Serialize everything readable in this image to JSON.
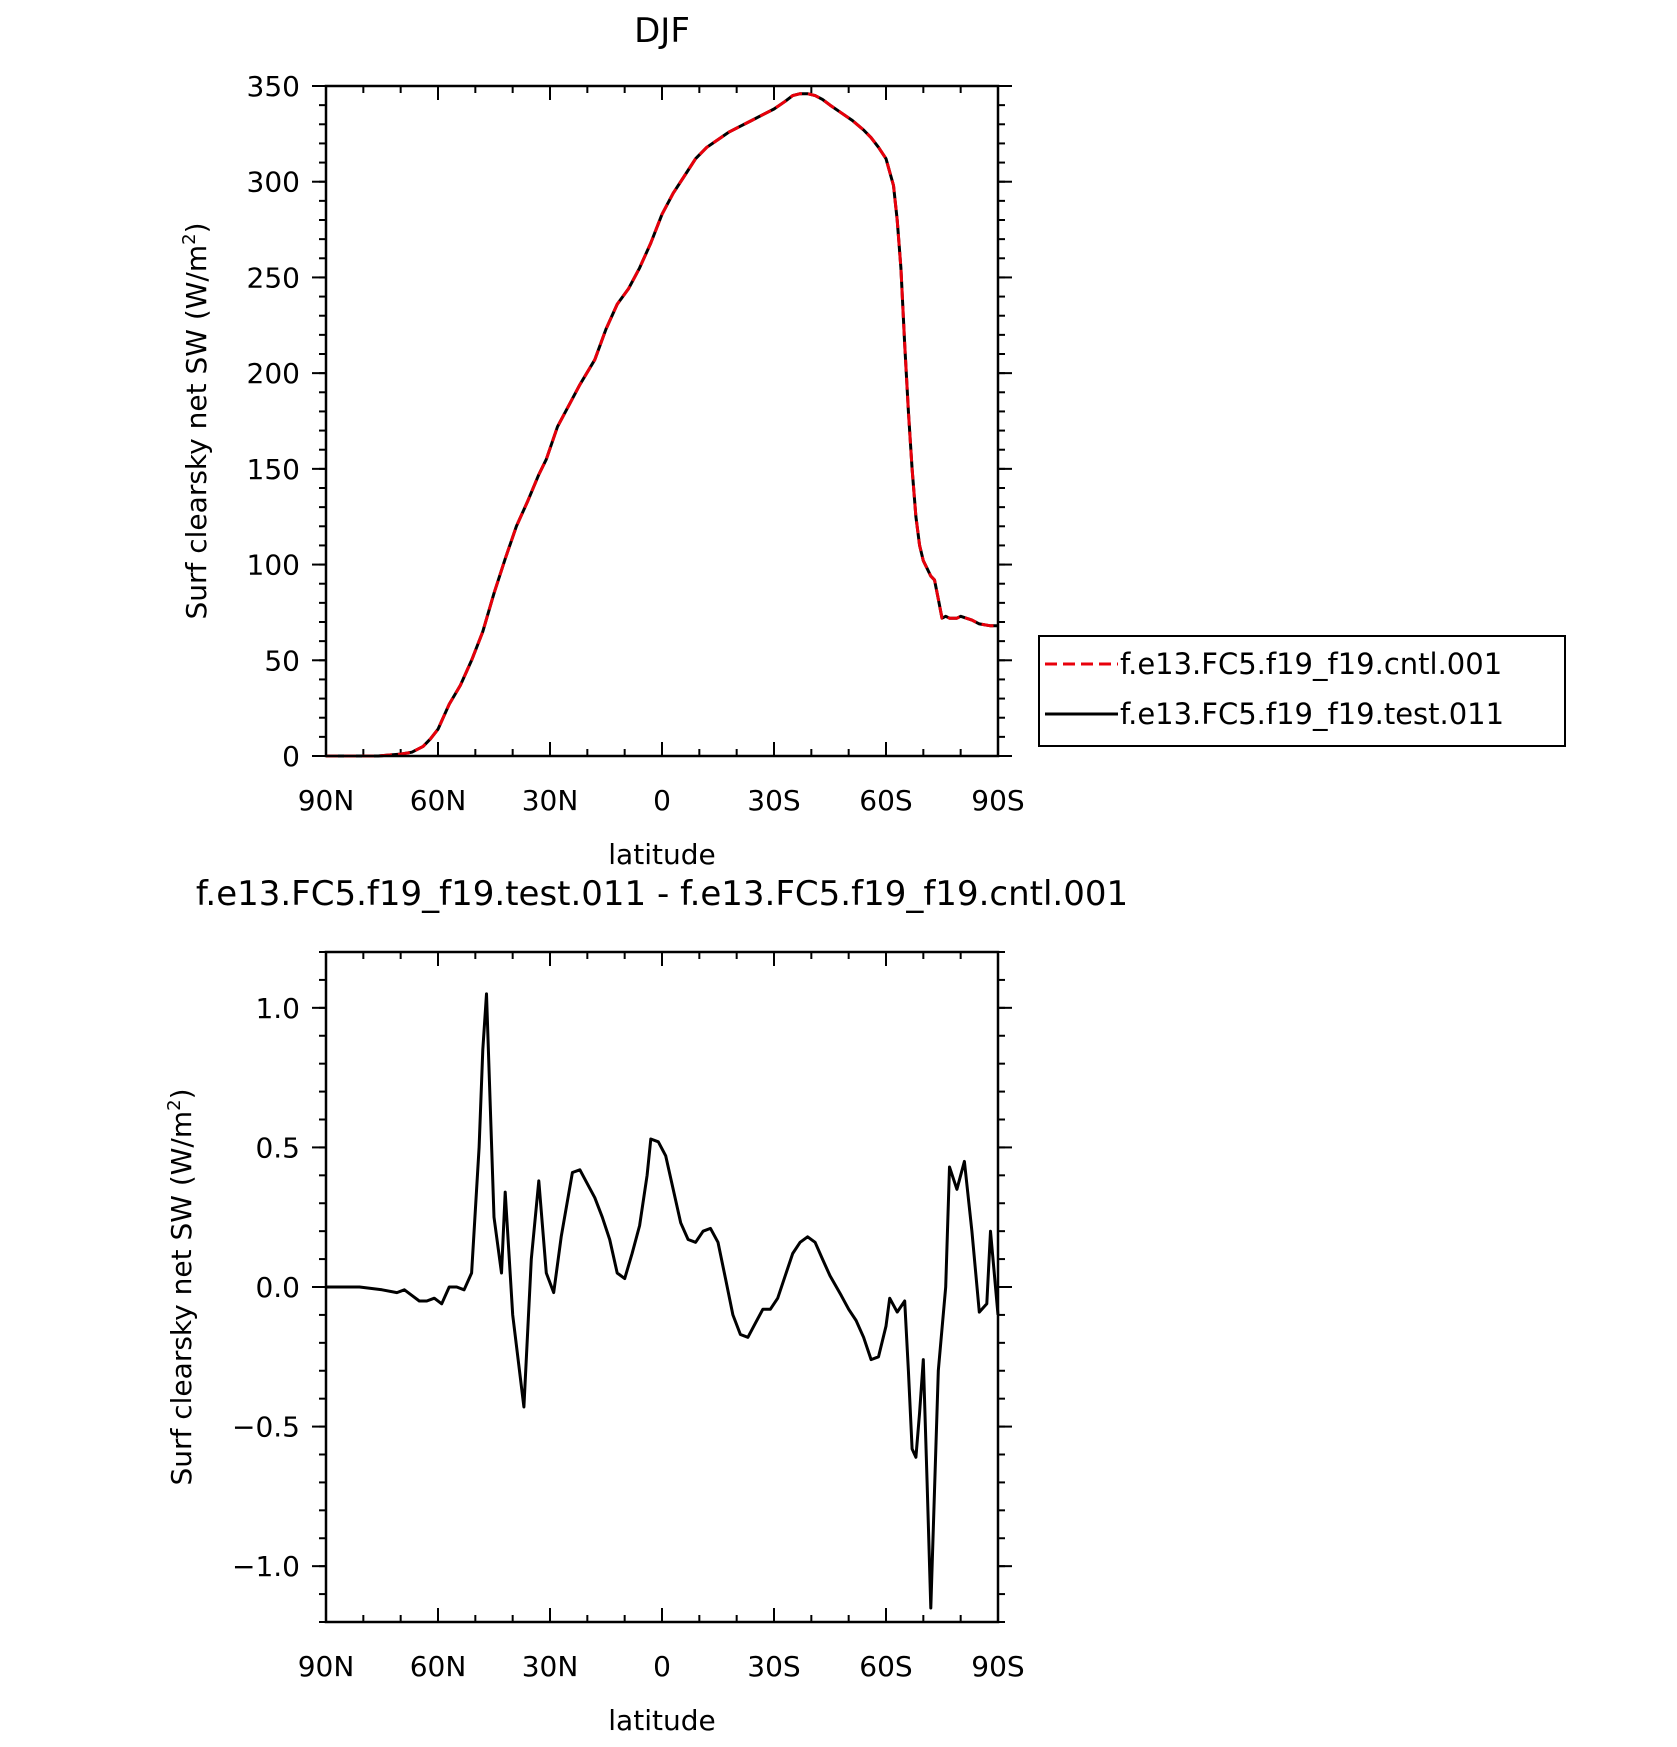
{
  "chart_data": [
    {
      "type": "line",
      "title": "DJF",
      "xlabel": "latitude",
      "ylabel": "Surf clearsky net SW (W/m²)",
      "ylabel_parts": [
        "Surf clearsky net SW (W/m",
        "2",
        ")"
      ],
      "xlim": [
        -90,
        90
      ],
      "ylim": [
        0,
        350
      ],
      "xticks": [
        {
          "value": -90,
          "label": "90N"
        },
        {
          "value": -60,
          "label": "60N"
        },
        {
          "value": -30,
          "label": "30N"
        },
        {
          "value": 0,
          "label": "0"
        },
        {
          "value": 30,
          "label": "30S"
        },
        {
          "value": 60,
          "label": "60S"
        },
        {
          "value": 90,
          "label": "90S"
        }
      ],
      "yticks": [
        {
          "value": 0,
          "label": "0"
        },
        {
          "value": 50,
          "label": "50"
        },
        {
          "value": 100,
          "label": "100"
        },
        {
          "value": 150,
          "label": "150"
        },
        {
          "value": 200,
          "label": "200"
        },
        {
          "value": 250,
          "label": "250"
        },
        {
          "value": 300,
          "label": "300"
        },
        {
          "value": 350,
          "label": "350"
        }
      ],
      "legend_position": "right",
      "series": [
        {
          "name": "f.e13.FC5.f19_f19.cntl.001",
          "color": "#e8000b",
          "style": "dashed",
          "x": [
            -90,
            -85,
            -80,
            -76,
            -73,
            -70,
            -67,
            -64,
            -62,
            -60,
            -57,
            -54,
            -51,
            -48,
            -45,
            -42,
            -39,
            -36,
            -33,
            -31,
            -28,
            -25,
            -22,
            -18,
            -15,
            -12,
            -9,
            -6,
            -3,
            0,
            3,
            6,
            9,
            12,
            15,
            18,
            21,
            24,
            27,
            30,
            33,
            35,
            37,
            39,
            41,
            43,
            45,
            48,
            51,
            54,
            56,
            58,
            60,
            62,
            63,
            64,
            65,
            66,
            67,
            68,
            69,
            70,
            71,
            72,
            73,
            74,
            75,
            76,
            77,
            78,
            79,
            80,
            83,
            85,
            88,
            90
          ],
          "y": [
            0,
            0,
            0,
            0,
            0.5,
            1,
            2,
            5,
            9,
            14,
            27,
            37,
            50,
            65,
            85,
            103,
            120,
            133,
            147,
            155,
            172,
            183,
            194,
            207,
            223,
            236,
            244,
            255,
            268,
            283,
            294,
            303,
            312,
            318,
            322,
            326,
            329,
            332,
            335,
            338,
            342,
            345,
            346,
            346,
            345,
            343,
            340,
            336,
            332,
            327,
            323,
            318,
            312,
            298,
            280,
            255,
            215,
            180,
            150,
            125,
            110,
            102,
            98,
            94,
            92,
            82,
            72,
            73,
            72,
            72,
            72,
            73,
            71,
            69,
            68,
            68
          ]
        },
        {
          "name": "f.e13.FC5.f19_f19.test.011",
          "color": "#000000",
          "style": "solid",
          "x": [
            -90,
            -85,
            -80,
            -76,
            -73,
            -70,
            -67,
            -64,
            -62,
            -60,
            -57,
            -54,
            -51,
            -48,
            -45,
            -42,
            -39,
            -36,
            -33,
            -31,
            -28,
            -25,
            -22,
            -18,
            -15,
            -12,
            -9,
            -6,
            -3,
            0,
            3,
            6,
            9,
            12,
            15,
            18,
            21,
            24,
            27,
            30,
            33,
            35,
            37,
            39,
            41,
            43,
            45,
            48,
            51,
            54,
            56,
            58,
            60,
            62,
            63,
            64,
            65,
            66,
            67,
            68,
            69,
            70,
            71,
            72,
            73,
            74,
            75,
            76,
            77,
            78,
            79,
            80,
            83,
            85,
            88,
            90
          ],
          "y": [
            0,
            0,
            0,
            0,
            0.5,
            1,
            2,
            5,
            9,
            14,
            27,
            37,
            50,
            65,
            85,
            103,
            120,
            133,
            147,
            155,
            172,
            183,
            194,
            207,
            223,
            236,
            244,
            255,
            268,
            283,
            294,
            303,
            312,
            318,
            322,
            326,
            329,
            332,
            335,
            338,
            342,
            345,
            346,
            346,
            345,
            343,
            340,
            336,
            332,
            327,
            323,
            318,
            312,
            298,
            280,
            255,
            215,
            180,
            150,
            125,
            110,
            102,
            98,
            94,
            92,
            82,
            72,
            73,
            72,
            72,
            72,
            73,
            71,
            69,
            68,
            68
          ]
        }
      ]
    },
    {
      "type": "line",
      "title": "f.e13.FC5.f19_f19.test.011 - f.e13.FC5.f19_f19.cntl.001",
      "xlabel": "latitude",
      "ylabel": "Surf clearsky net SW (W/m²)",
      "ylabel_parts": [
        "Surf clearsky net SW (W/m",
        "2",
        ")"
      ],
      "xlim": [
        -90,
        90
      ],
      "ylim": [
        -1.2,
        1.2
      ],
      "xticks": [
        {
          "value": -90,
          "label": "90N"
        },
        {
          "value": -60,
          "label": "60N"
        },
        {
          "value": -30,
          "label": "30N"
        },
        {
          "value": 0,
          "label": "0"
        },
        {
          "value": 30,
          "label": "30S"
        },
        {
          "value": 60,
          "label": "60S"
        },
        {
          "value": 90,
          "label": "90S"
        }
      ],
      "yticks": [
        {
          "value": -1.0,
          "label": "−1.0"
        },
        {
          "value": -0.5,
          "label": "−0.5"
        },
        {
          "value": 0.0,
          "label": "0.0"
        },
        {
          "value": 0.5,
          "label": "0.5"
        },
        {
          "value": 1.0,
          "label": "1.0"
        }
      ],
      "series": [
        {
          "color": "#000000",
          "style": "solid",
          "x": [
            -90,
            -81,
            -75,
            -71,
            -69,
            -67,
            -65,
            -63,
            -61,
            -59,
            -57,
            -55,
            -53,
            -51,
            -49,
            -48,
            -47,
            -45,
            -43,
            -42,
            -40,
            -37,
            -35,
            -33,
            -31,
            -29,
            -27,
            -24,
            -22,
            -20,
            -18,
            -16,
            -14,
            -12,
            -10,
            -8,
            -6,
            -4,
            -3,
            -1,
            1,
            3,
            5,
            7,
            9,
            11,
            13,
            15,
            17,
            19,
            21,
            23,
            25,
            27,
            29,
            31,
            33,
            35,
            37,
            39,
            41,
            43,
            45,
            48,
            50,
            52,
            54,
            56,
            58,
            60,
            61,
            63,
            65,
            66,
            67,
            68,
            69,
            70,
            71,
            72,
            74,
            76,
            77,
            79,
            81,
            83,
            85,
            87,
            88,
            90
          ],
          "y": [
            0,
            0,
            -0.01,
            -0.02,
            -0.01,
            -0.03,
            -0.05,
            -0.05,
            -0.04,
            -0.06,
            0,
            0,
            -0.01,
            0.05,
            0.5,
            0.85,
            1.05,
            0.25,
            0.05,
            0.34,
            -0.1,
            -0.43,
            0.1,
            0.38,
            0.05,
            -0.02,
            0.18,
            0.41,
            0.42,
            0.37,
            0.32,
            0.25,
            0.17,
            0.05,
            0.03,
            0.12,
            0.22,
            0.4,
            0.53,
            0.52,
            0.47,
            0.35,
            0.23,
            0.17,
            0.16,
            0.2,
            0.21,
            0.16,
            0.03,
            -0.1,
            -0.17,
            -0.18,
            -0.13,
            -0.08,
            -0.08,
            -0.04,
            0.04,
            0.12,
            0.16,
            0.18,
            0.16,
            0.1,
            0.04,
            -0.03,
            -0.08,
            -0.12,
            -0.18,
            -0.26,
            -0.25,
            -0.14,
            -0.04,
            -0.09,
            -0.05,
            -0.3,
            -0.58,
            -0.61,
            -0.45,
            -0.26,
            -0.7,
            -1.15,
            -0.3,
            0.0,
            0.43,
            0.35,
            0.45,
            0.2,
            -0.09,
            -0.06,
            0.2,
            -0.1
          ]
        }
      ]
    }
  ]
}
